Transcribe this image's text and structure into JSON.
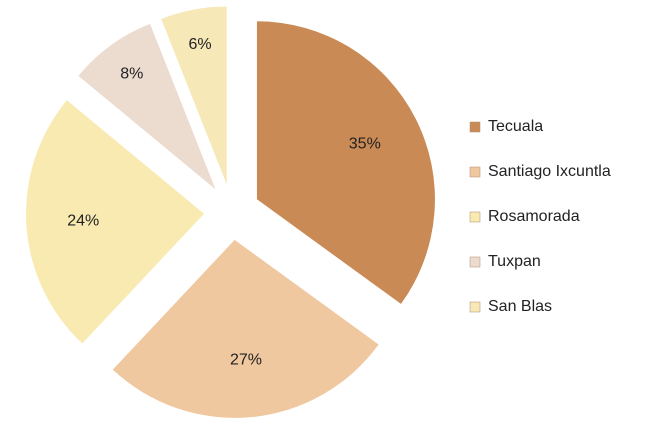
{
  "chart_data": {
    "type": "pie",
    "categories": [
      "Tecuala",
      "Santiago Ixcuntla",
      "Rosamorada",
      "Tuxpan",
      "San Blas"
    ],
    "values": [
      35,
      27,
      24,
      8,
      6
    ],
    "value_labels": [
      "35%",
      "27%",
      "24%",
      "8%",
      "6%"
    ],
    "colors": [
      "#c98a55",
      "#f0c8a0",
      "#f8eab0",
      "#ecdcd0",
      "#f7e8b8"
    ],
    "legend": "right"
  }
}
